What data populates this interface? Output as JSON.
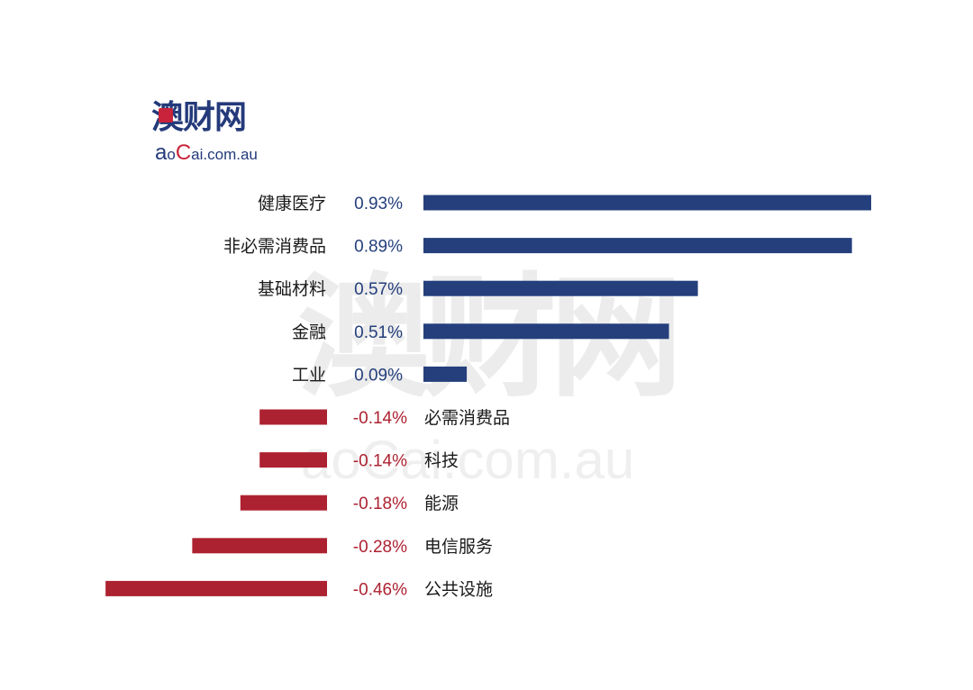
{
  "logo": {
    "main": "澳财网",
    "sub": {
      "a": "a",
      "o": "o",
      "C": "C",
      "rest": "ai.com.au"
    }
  },
  "watermark": {
    "main": "澳财网",
    "sub": "aoCai.com.au"
  },
  "colors": {
    "positive": "#243f7c",
    "negative": "#ad2231",
    "brand": "#243a7a",
    "brand_accent": "#c8233a"
  },
  "chart_data": {
    "type": "bar",
    "orientation": "horizontal",
    "unit": "%",
    "categories": [
      "健康医疗",
      "非必需消费品",
      "基础材料",
      "金融",
      "工业",
      "必需消费品",
      "科技",
      "能源",
      "电信服务",
      "公共设施"
    ],
    "values": [
      0.93,
      0.89,
      0.57,
      0.51,
      0.09,
      -0.14,
      -0.14,
      -0.18,
      -0.28,
      -0.46
    ],
    "value_labels": [
      "0.93%",
      "0.89%",
      "0.57%",
      "0.51%",
      "0.09%",
      "-0.14%",
      "-0.14%",
      "-0.18%",
      "-0.28%",
      "-0.46%"
    ],
    "title": "",
    "xlabel": "",
    "ylabel": "",
    "grid": false,
    "legend": "none"
  }
}
